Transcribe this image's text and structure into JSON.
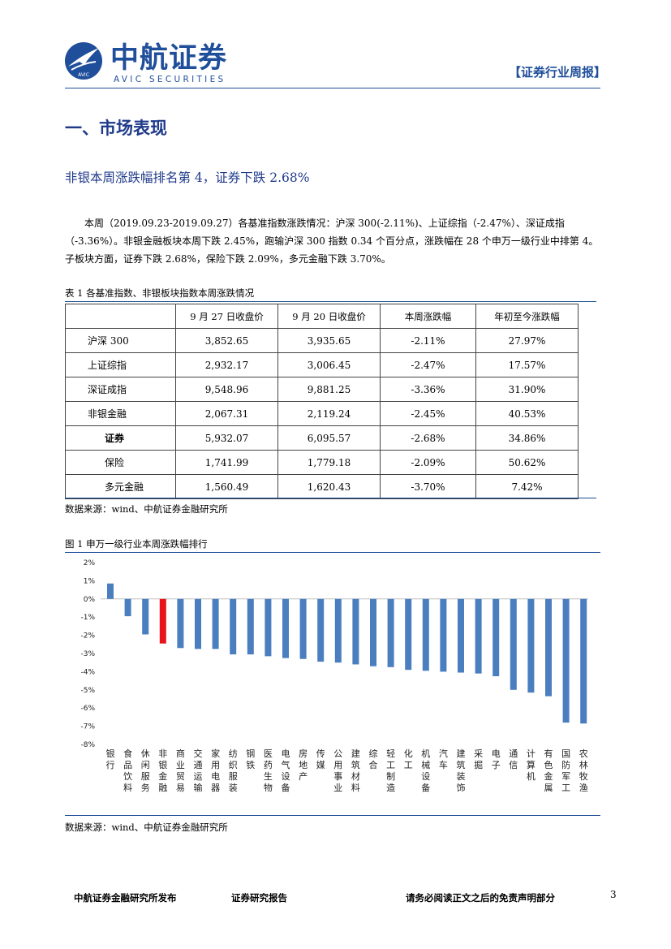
{
  "header": {
    "logo_cn": "中航证券",
    "logo_en": "AVIC SECURITIES",
    "logo_mark_text": "AVIC",
    "report_type": "【证券行业周报】",
    "brand_color": "#1f4e9a"
  },
  "section": {
    "title": "一、市场表现",
    "subtitle": "非银本周涨跌幅排名第 4，证券下跌 2.68%",
    "paragraph": "本周（2019.09.23-2019.09.27）各基准指数涨跌情况：沪深 300(-2.11%)、上证综指（-2.47%）、深证成指（-3.36%）。非银金融板块本周下跌 2.45%，跑输沪深 300 指数 0.34 个百分点，涨跌幅在 28 个申万一级行业中排第 4。子板块方面，证券下跌 2.68%，保险下跌 2.09%，多元金融下跌 3.70%。"
  },
  "table": {
    "caption": "表 1 各基准指数、非银板块指数本周涨跌情况",
    "headers": [
      "",
      "9 月 27 日收盘价",
      "9 月 20 日收盘价",
      "本周涨跌幅",
      "年初至今涨跌幅"
    ],
    "rows": [
      {
        "label": "沪深 300",
        "c1": "3,852.65",
        "c2": "3,935.65",
        "c3": "-2.11%",
        "c4": "27.97%"
      },
      {
        "label": "上证综指",
        "c1": "2,932.17",
        "c2": "3,006.45",
        "c3": "-2.47%",
        "c4": "17.57%"
      },
      {
        "label": "深证成指",
        "c1": "9,548.96",
        "c2": "9,881.25",
        "c3": "-3.36%",
        "c4": "31.90%"
      },
      {
        "label": "非银金融",
        "c1": "2,067.31",
        "c2": "2,119.24",
        "c3": "-2.45%",
        "c4": "40.53%"
      },
      {
        "label": "证券",
        "c1": "5,932.07",
        "c2": "6,095.57",
        "c3": "-2.68%",
        "c4": "34.86%"
      },
      {
        "label": "保险",
        "c1": "1,741.99",
        "c2": "1,779.18",
        "c3": "-2.09%",
        "c4": "50.62%"
      },
      {
        "label": "多元金融",
        "c1": "1,560.49",
        "c2": "1,620.43",
        "c3": "-3.70%",
        "c4": "7.42%"
      }
    ],
    "source": "数据来源：wind、中航证券金融研究所"
  },
  "figure": {
    "caption": "图 1 申万一级行业本周涨跌幅排行",
    "source": "数据来源：wind、中航证券金融研究所"
  },
  "chart_data": {
    "type": "bar",
    "title": "",
    "xlabel": "",
    "ylabel": "",
    "ylim": [
      -8,
      2
    ],
    "yticks": [
      "2%",
      "1%",
      "0%",
      "-1%",
      "-2%",
      "-3%",
      "-4%",
      "-5%",
      "-6%",
      "-7%",
      "-8%"
    ],
    "grid": false,
    "bar_color": "#4a7ebf",
    "highlight_color": "#e8141b",
    "highlight_category": "非银金融",
    "categories": [
      "银行",
      "食品饮料",
      "休闲服务",
      "非银金融",
      "商业贸易",
      "交通运输",
      "家用电器",
      "纺织服装",
      "钢铁",
      "医药生物",
      "电气设备",
      "房地产",
      "传媒",
      "公用事业",
      "建筑材料",
      "综合",
      "轻工制造",
      "化工",
      "机械设备",
      "汽车",
      "建筑装饰",
      "采掘",
      "电子",
      "通信",
      "计算机",
      "有色金属",
      "国防军工",
      "农林牧渔"
    ],
    "values": [
      0.85,
      -0.95,
      -1.95,
      -2.45,
      -2.7,
      -2.75,
      -2.75,
      -3.05,
      -3.05,
      -3.15,
      -3.25,
      -3.3,
      -3.45,
      -3.5,
      -3.6,
      -3.7,
      -3.75,
      -3.9,
      -3.95,
      -4.0,
      -4.05,
      -4.1,
      -4.25,
      -5.0,
      -5.15,
      -5.35,
      -6.8,
      -6.85
    ]
  },
  "footer": {
    "left": "中航证券金融研究所发布",
    "middle": "证券研究报告",
    "right": "请务必阅读正文之后的免责声明部分",
    "page": "3"
  }
}
